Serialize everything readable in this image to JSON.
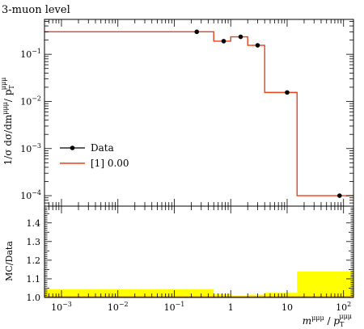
{
  "chart_data": {
    "type": "line",
    "title": "3-muon level",
    "ylabel": "1/σ dσ/dm^{μμμ}/p_T^{μμμ}",
    "xlabel": "m^{μμμ}/p_T^{μμμ}",
    "xscale": "log",
    "yscale": "log",
    "xlim": [
      0.0005,
      150
    ],
    "ylim": [
      6e-05,
      0.55
    ],
    "x_ticks": [
      {
        "v": 0.001,
        "base": "10",
        "exp": "−3"
      },
      {
        "v": 0.01,
        "base": "10",
        "exp": "−2"
      },
      {
        "v": 0.1,
        "base": "10",
        "exp": "−1"
      },
      {
        "v": 1,
        "base": "1",
        "exp": ""
      },
      {
        "v": 10,
        "base": "10",
        "exp": ""
      },
      {
        "v": 100,
        "base": "10",
        "exp": "2"
      }
    ],
    "y_ticks": [
      {
        "v": 0.0001,
        "base": "10",
        "exp": "−4"
      },
      {
        "v": 0.001,
        "base": "10",
        "exp": "−3"
      },
      {
        "v": 0.01,
        "base": "10",
        "exp": "−2"
      },
      {
        "v": 0.1,
        "base": "10",
        "exp": "−1"
      }
    ],
    "legend": {
      "placement": "left",
      "entries": [
        {
          "label": "Data",
          "style": "points"
        },
        {
          "label": "[1] 0.00",
          "style": "line",
          "color": "#e8401c"
        }
      ]
    },
    "series": [
      {
        "name": "Data",
        "style": "points",
        "color": "#000000",
        "points": [
          {
            "x": 0.25,
            "y": 0.3
          },
          {
            "x": 0.75,
            "y": 0.19
          },
          {
            "x": 1.5,
            "y": 0.235
          },
          {
            "x": 3.0,
            "y": 0.155
          },
          {
            "x": 10,
            "y": 0.0155
          },
          {
            "x": 85,
            "y": 0.0001
          }
        ]
      },
      {
        "name": "[1] 0.00",
        "style": "step",
        "color": "#e8401c",
        "edges": [
          0.0005,
          0.5,
          1.0,
          2.0,
          4.0,
          15.0,
          150
        ],
        "values": [
          0.3,
          0.19,
          0.235,
          0.155,
          0.0155,
          0.0001
        ]
      }
    ],
    "ratio": {
      "ylabel": "MC/Data",
      "ylim": [
        1.0,
        1.49
      ],
      "y_ticks": [
        "1.0",
        "1.1",
        "1.2",
        "1.3",
        "1.4"
      ],
      "band_color": "#ffff00",
      "band": {
        "edges": [
          0.0005,
          0.5,
          1.0,
          2.0,
          4.0,
          15.0,
          150
        ],
        "upper": [
          1.045,
          1.02,
          1.01,
          1.015,
          1.025,
          1.14
        ]
      },
      "line_value": 1.0
    }
  }
}
